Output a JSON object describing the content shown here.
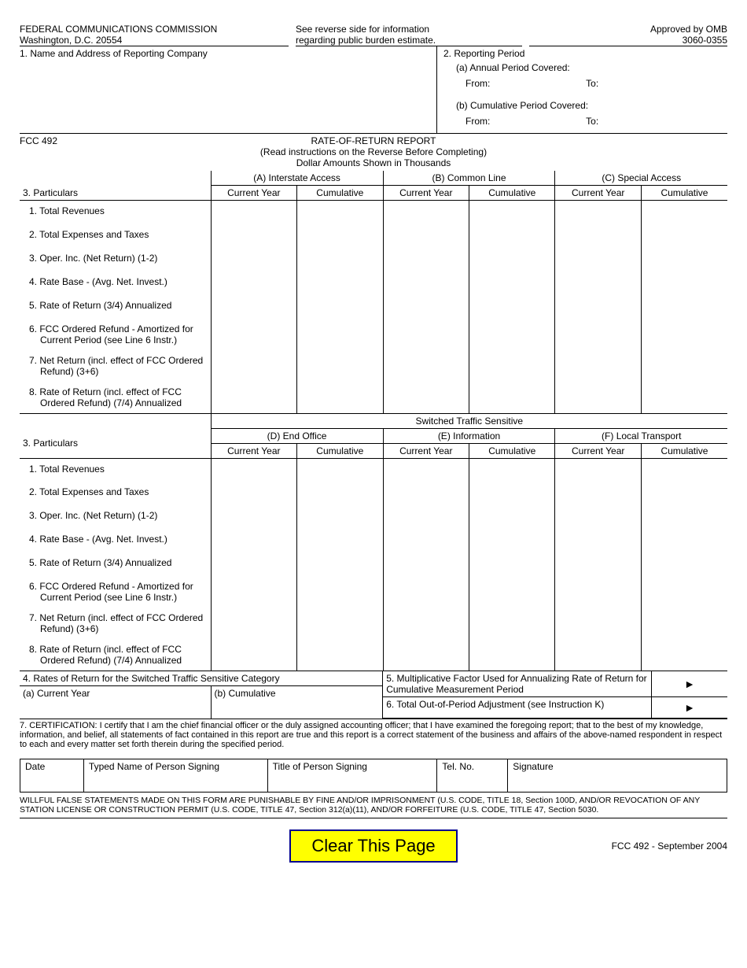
{
  "header": {
    "agencyLine1": "FEDERAL COMMUNICATIONS COMMISSION",
    "agencyLine2": "Washington, D.C.  20554",
    "reverseLine1": "See reverse side for information",
    "reverseLine2": "regarding public burden estimate.",
    "approved": "Approved by OMB",
    "ombNum": "3060-0355"
  },
  "section1": {
    "label": "1.  Name and Address of Reporting Company"
  },
  "section2": {
    "title": "2.  Reporting Period",
    "a": "(a)  Annual Period Covered:",
    "from": "From:",
    "to": "To:",
    "b": "(b)  Cumulative Period Covered:"
  },
  "formId": "FCC 492",
  "formTitle": "RATE-OF-RETURN REPORT",
  "instrLine": "(Read instructions on the Reverse Before Completing)",
  "dollarLine": "Dollar Amounts Shown in Thousands",
  "colGroupsTop": {
    "a": "(A) Interstate Access",
    "b": "(B) Common Line",
    "c": "(C) Special Access"
  },
  "subCols": {
    "cy": "Current Year",
    "cum": "Cumulative"
  },
  "particularsLabel": "3.  Particulars",
  "rows": [
    "1.  Total Revenues",
    "2.  Total Expenses and Taxes",
    "3.  Oper. Inc. (Net Return) (1-2)",
    "4.  Rate Base - (Avg. Net. Invest.)",
    "5.  Rate of Return (3/4) Annualized",
    "6.  FCC Ordered Refund - Amortized for Current Period (see Line 6 Instr.)",
    "7.  Net Return (incl. effect of FCC Ordered Refund) (3+6)",
    "8.  Rate of Return (incl. effect of FCC Ordered Refund) (7/4) Annualized"
  ],
  "stsHeader": "Switched Traffic Sensitive",
  "colGroupsBot": {
    "d": "(D) End Office",
    "e": "(E) Information",
    "f": "(F) Local Transport"
  },
  "box4": {
    "title": "4.  Rates of Return for the Switched Traffic Sensitive Category",
    "a": "(a)  Current Year",
    "b": "(b)  Cumulative"
  },
  "box5": "5.  Multiplicative Factor Used for Annualizing Rate of Return for Cumulative Measurement Period",
  "box6": "6.  Total Out-of-Period Adjustment (see Instruction K)",
  "cert": "7.  CERTIFICATION:   I certify that I am the chief financial officer or the duly assigned accounting officer; that I have examined the foregoing report; that to the best of my knowledge, information, and belief, all statements of fact contained in this report are true and this report is a correct statement of the business and affairs of the above-named respondent in respect to each and every matter set forth therein during the specified period.",
  "sig": {
    "date": "Date",
    "typed": "Typed Name of Person Signing",
    "title": "Title of Person Signing",
    "tel": "Tel. No.",
    "signature": "Signature"
  },
  "warning": "WILLFUL FALSE STATEMENTS MADE ON THIS FORM ARE PUNISHABLE BY FINE AND/OR IMPRISONMENT  (U.S. CODE, TITLE 18, Section 100D, AND/OR REVOCATION OF ANY STATION LICENSE OR CONSTRUCTION PERMIT  (U.S. CODE, TITLE 47, Section 312(a)(11), AND/OR FORFEITURE  (U.S. CODE, TITLE 47, Section 5030.",
  "clearBtn": "Clear This Page",
  "footerId": "FCC 492 - September 2004",
  "arrow": "►",
  "colors": {
    "clearBg": "#ffff00",
    "clearBorder": "#000090"
  }
}
